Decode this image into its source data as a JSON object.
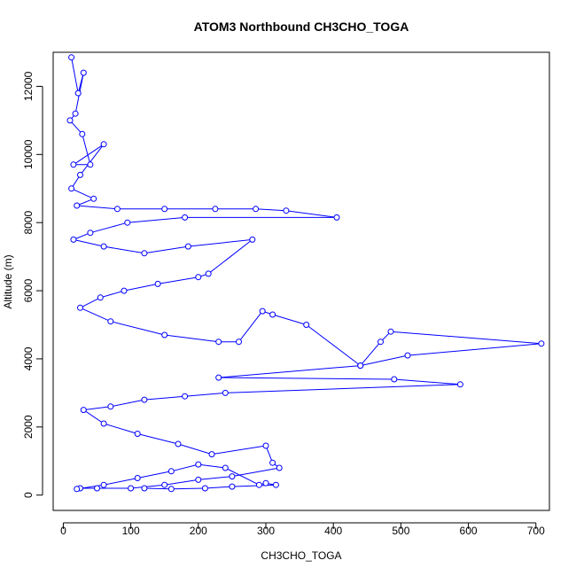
{
  "chart_data": {
    "type": "scatter",
    "title": "ATOM3 Northbound CH3CHO_TOGA",
    "xlabel": "CH3CHO_TOGA",
    "ylabel": "Altitude (m)",
    "xlim": [
      -15,
      720
    ],
    "ylim": [
      -450,
      13000
    ],
    "x_ticks": [
      0,
      100,
      200,
      300,
      400,
      500,
      600,
      700
    ],
    "y_ticks": [
      0,
      2000,
      4000,
      6000,
      8000,
      10000,
      12000
    ],
    "grid": false,
    "legend": "none",
    "series_color": "#0000ff",
    "marker": "open-circle",
    "connected": true,
    "series": [
      {
        "values": [
          [
            12,
            12850
          ],
          [
            22,
            11800
          ],
          [
            30,
            12400
          ],
          [
            18,
            11200
          ],
          [
            10,
            11000
          ],
          [
            28,
            10600
          ],
          [
            40,
            9700
          ],
          [
            15,
            9700
          ],
          [
            60,
            10300
          ],
          [
            25,
            9400
          ],
          [
            12,
            9000
          ],
          [
            45,
            8700
          ],
          [
            20,
            8500
          ],
          [
            80,
            8400
          ],
          [
            150,
            8400
          ],
          [
            225,
            8400
          ],
          [
            285,
            8400
          ],
          [
            330,
            8350
          ],
          [
            405,
            8150
          ],
          [
            180,
            8150
          ],
          [
            95,
            8000
          ],
          [
            40,
            7700
          ],
          [
            15,
            7500
          ],
          [
            60,
            7300
          ],
          [
            120,
            7100
          ],
          [
            185,
            7300
          ],
          [
            280,
            7500
          ],
          [
            215,
            6500
          ],
          [
            200,
            6400
          ],
          [
            140,
            6200
          ],
          [
            90,
            6000
          ],
          [
            55,
            5800
          ],
          [
            25,
            5500
          ],
          [
            70,
            5100
          ],
          [
            150,
            4700
          ],
          [
            230,
            4500
          ],
          [
            260,
            4500
          ],
          [
            295,
            5400
          ],
          [
            310,
            5300
          ],
          [
            360,
            5000
          ],
          [
            440,
            3800
          ],
          [
            470,
            4500
          ],
          [
            485,
            4800
          ],
          [
            708,
            4450
          ],
          [
            510,
            4100
          ],
          [
            440,
            3800
          ],
          [
            230,
            3450
          ],
          [
            490,
            3400
          ],
          [
            588,
            3250
          ],
          [
            240,
            3000
          ],
          [
            180,
            2900
          ],
          [
            120,
            2800
          ],
          [
            70,
            2600
          ],
          [
            30,
            2500
          ],
          [
            60,
            2100
          ],
          [
            110,
            1800
          ],
          [
            170,
            1500
          ],
          [
            220,
            1200
          ],
          [
            300,
            1450
          ],
          [
            310,
            950
          ],
          [
            320,
            800
          ],
          [
            250,
            550
          ],
          [
            200,
            450
          ],
          [
            150,
            300
          ],
          [
            100,
            200
          ],
          [
            50,
            200
          ],
          [
            25,
            200
          ],
          [
            20,
            180
          ],
          [
            60,
            300
          ],
          [
            110,
            500
          ],
          [
            160,
            700
          ],
          [
            200,
            900
          ],
          [
            240,
            800
          ],
          [
            290,
            300
          ],
          [
            300,
            350
          ],
          [
            315,
            300
          ],
          [
            250,
            250
          ],
          [
            210,
            200
          ],
          [
            160,
            180
          ],
          [
            120,
            200
          ]
        ]
      }
    ]
  }
}
